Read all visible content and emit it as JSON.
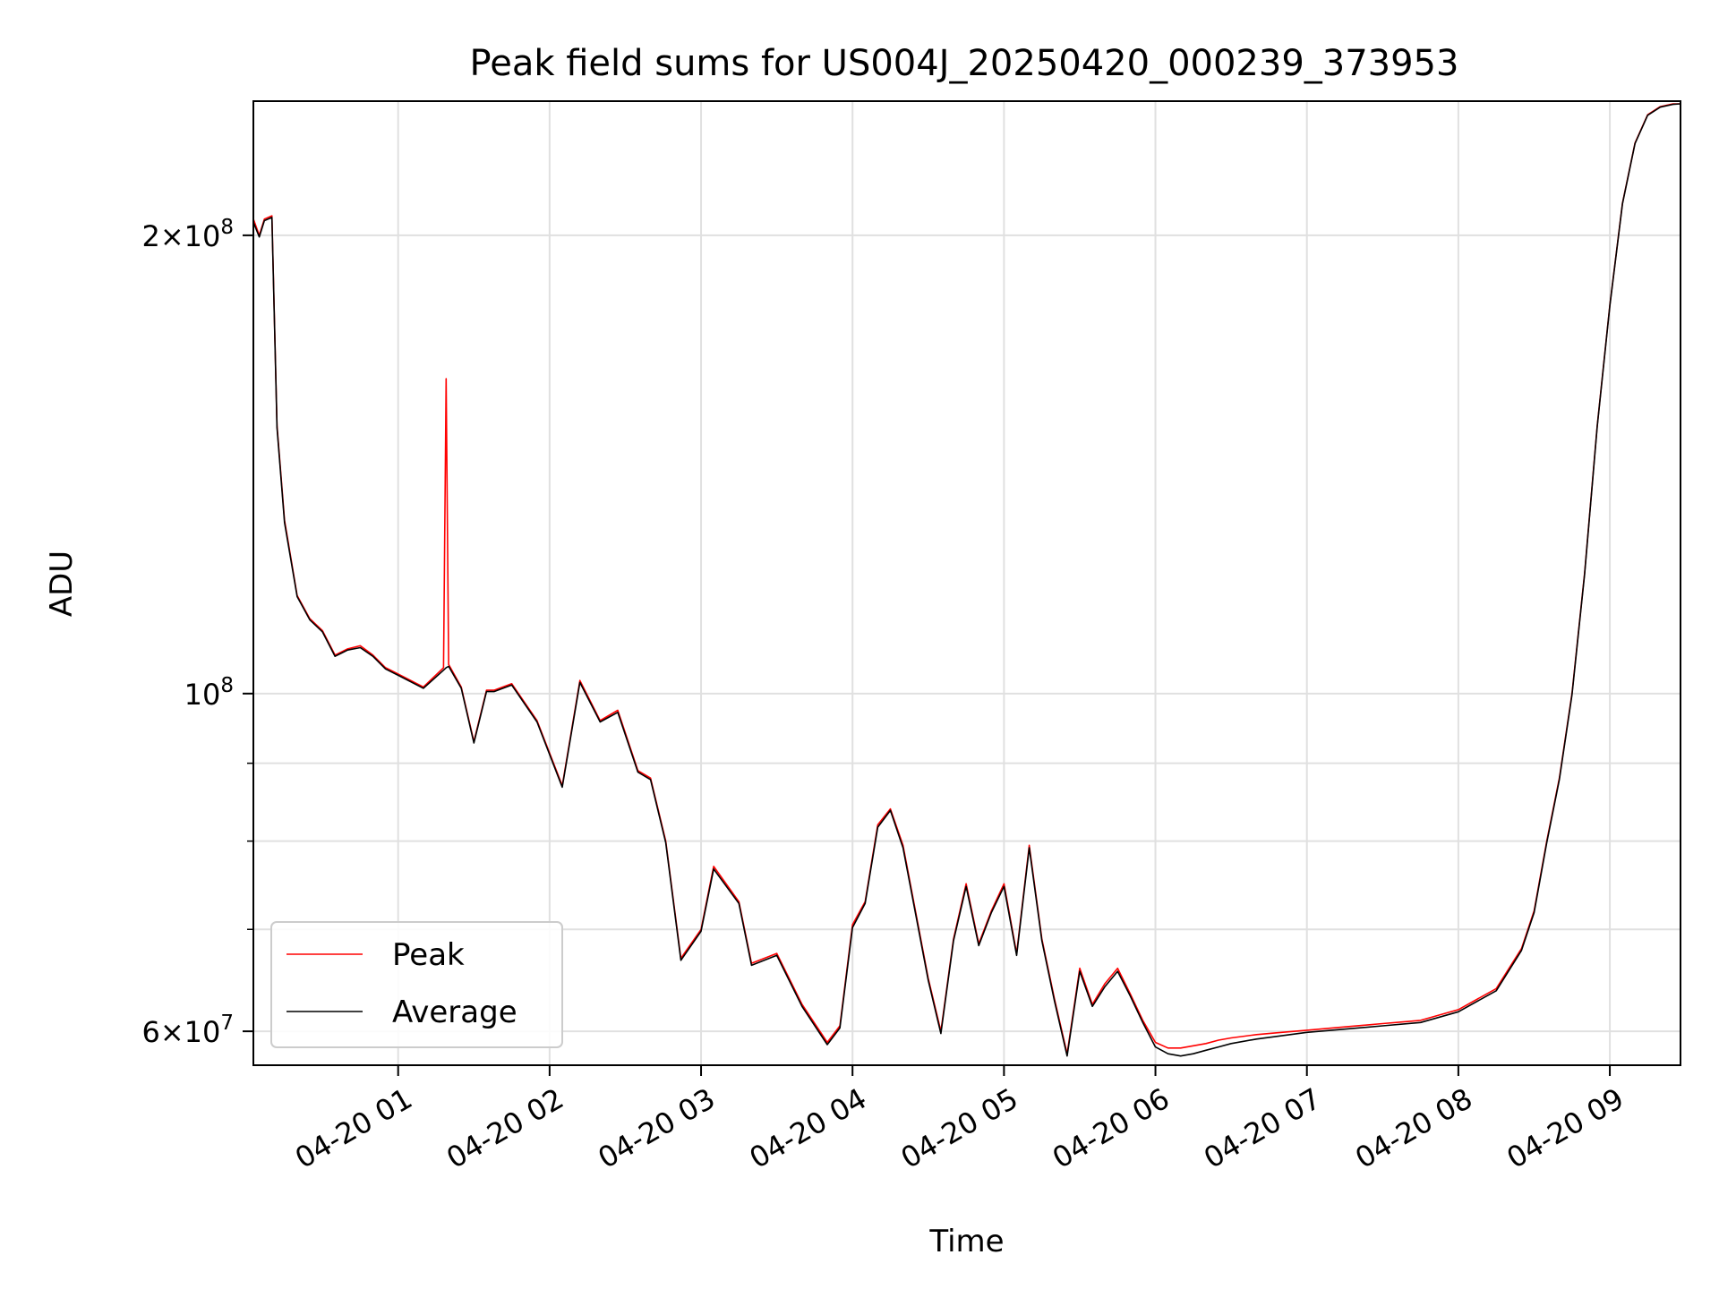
{
  "chart_data": {
    "type": "line",
    "title": "Peak field sums for US004J_20250420_000239_373953",
    "xlabel": "Time",
    "ylabel": "ADU",
    "x_is_time": true,
    "y_scale": "log",
    "xlim": [
      "2025-04-20 00:02:39",
      "2025-04-20 09:28:00"
    ],
    "ylim": [
      57000000,
      245000000
    ],
    "x_ticks": [
      {
        "value": "2025-04-20 01:00",
        "label": "04-20 01"
      },
      {
        "value": "2025-04-20 02:00",
        "label": "04-20 02"
      },
      {
        "value": "2025-04-20 03:00",
        "label": "04-20 03"
      },
      {
        "value": "2025-04-20 04:00",
        "label": "04-20 04"
      },
      {
        "value": "2025-04-20 05:00",
        "label": "04-20 05"
      },
      {
        "value": "2025-04-20 06:00",
        "label": "04-20 06"
      },
      {
        "value": "2025-04-20 07:00",
        "label": "04-20 07"
      },
      {
        "value": "2025-04-20 08:00",
        "label": "04-20 08"
      },
      {
        "value": "2025-04-20 09:00",
        "label": "04-20 09"
      }
    ],
    "y_major_ticks": [
      {
        "value": 60000000,
        "mantissa": "6",
        "base": "10",
        "exp": "7"
      },
      {
        "value": 100000000,
        "mantissa": "",
        "base": "10",
        "exp": "8"
      },
      {
        "value": 200000000,
        "mantissa": "2",
        "base": "10",
        "exp": "8"
      }
    ],
    "y_minor_ticks": [
      70000000,
      80000000,
      90000000
    ],
    "grid": true,
    "legend_position": "lower-left",
    "series": [
      {
        "name": "Peak",
        "color": "#ff0000",
        "x": [
          "2025-04-20 00:02:39",
          "2025-04-20 00:05",
          "2025-04-20 00:07",
          "2025-04-20 00:10",
          "2025-04-20 00:12",
          "2025-04-20 00:15",
          "2025-04-20 00:20",
          "2025-04-20 00:25",
          "2025-04-20 00:30",
          "2025-04-20 00:35",
          "2025-04-20 00:40",
          "2025-04-20 00:45",
          "2025-04-20 00:50",
          "2025-04-20 00:55",
          "2025-04-20 01:00",
          "2025-04-20 01:10",
          "2025-04-20 01:18",
          "2025-04-20 01:19",
          "2025-04-20 01:20",
          "2025-04-20 01:25",
          "2025-04-20 01:30",
          "2025-04-20 01:35",
          "2025-04-20 01:38",
          "2025-04-20 01:45",
          "2025-04-20 01:55",
          "2025-04-20 02:05",
          "2025-04-20 02:12",
          "2025-04-20 02:20",
          "2025-04-20 02:27",
          "2025-04-20 02:35",
          "2025-04-20 02:40",
          "2025-04-20 02:46",
          "2025-04-20 02:52",
          "2025-04-20 03:00",
          "2025-04-20 03:05",
          "2025-04-20 03:15",
          "2025-04-20 03:20",
          "2025-04-20 03:30",
          "2025-04-20 03:40",
          "2025-04-20 03:50",
          "2025-04-20 03:55",
          "2025-04-20 04:00",
          "2025-04-20 04:05",
          "2025-04-20 04:10",
          "2025-04-20 04:15",
          "2025-04-20 04:20",
          "2025-04-20 04:30",
          "2025-04-20 04:35",
          "2025-04-20 04:40",
          "2025-04-20 04:45",
          "2025-04-20 04:50",
          "2025-04-20 04:55",
          "2025-04-20 05:00",
          "2025-04-20 05:05",
          "2025-04-20 05:10",
          "2025-04-20 05:15",
          "2025-04-20 05:20",
          "2025-04-20 05:25",
          "2025-04-20 05:30",
          "2025-04-20 05:35",
          "2025-04-20 05:40",
          "2025-04-20 05:45",
          "2025-04-20 05:50",
          "2025-04-20 05:55",
          "2025-04-20 06:00",
          "2025-04-20 06:05",
          "2025-04-20 06:10",
          "2025-04-20 06:15",
          "2025-04-20 06:20",
          "2025-04-20 06:25",
          "2025-04-20 06:30",
          "2025-04-20 06:40",
          "2025-04-20 06:50",
          "2025-04-20 07:00",
          "2025-04-20 07:15",
          "2025-04-20 07:30",
          "2025-04-20 07:45",
          "2025-04-20 08:00",
          "2025-04-20 08:15",
          "2025-04-20 08:25",
          "2025-04-20 08:30",
          "2025-04-20 08:35",
          "2025-04-20 08:40",
          "2025-04-20 08:45",
          "2025-04-20 08:50",
          "2025-04-20 08:55",
          "2025-04-20 09:00",
          "2025-04-20 09:05",
          "2025-04-20 09:10",
          "2025-04-20 09:15",
          "2025-04-20 09:20",
          "2025-04-20 09:25",
          "2025-04-20 09:28"
        ],
        "y": [
          205000000,
          200000000,
          205000000,
          206000000,
          150000000,
          130000000,
          116000000,
          112000000,
          110000000,
          106000000,
          107000000,
          107500000,
          106000000,
          104000000,
          103000000,
          101000000,
          104000000,
          161000000,
          104500000,
          101000000,
          93000000,
          100500000,
          100500000,
          101500000,
          96000000,
          87000000,
          102000000,
          96000000,
          97500000,
          89000000,
          88000000,
          80000000,
          67000000,
          70000000,
          77000000,
          73000000,
          66500000,
          67500000,
          62500000,
          59000000,
          60500000,
          70500000,
          73000000,
          82000000,
          84000000,
          79500000,
          65000000,
          60000000,
          69000000,
          75000000,
          68500000,
          72000000,
          75000000,
          67500000,
          79500000,
          69000000,
          63000000,
          58000000,
          66000000,
          62500000,
          64500000,
          66000000,
          63500000,
          61000000,
          59000000,
          58500000,
          58500000,
          58700000,
          58900000,
          59200000,
          59400000,
          59700000,
          59900000,
          60100000,
          60400000,
          60700000,
          61000000,
          62000000,
          64000000,
          68000000,
          72000000,
          80000000,
          88000000,
          100000000,
          120000000,
          150000000,
          180000000,
          210000000,
          230000000,
          240000000,
          243000000,
          244000000,
          244000000
        ]
      },
      {
        "name": "Average",
        "color": "#000000",
        "x": [
          "2025-04-20 00:02:39",
          "2025-04-20 00:05",
          "2025-04-20 00:07",
          "2025-04-20 00:10",
          "2025-04-20 00:12",
          "2025-04-20 00:15",
          "2025-04-20 00:20",
          "2025-04-20 00:25",
          "2025-04-20 00:30",
          "2025-04-20 00:35",
          "2025-04-20 00:40",
          "2025-04-20 00:45",
          "2025-04-20 00:50",
          "2025-04-20 00:55",
          "2025-04-20 01:00",
          "2025-04-20 01:10",
          "2025-04-20 01:18",
          "2025-04-20 01:19",
          "2025-04-20 01:20",
          "2025-04-20 01:25",
          "2025-04-20 01:30",
          "2025-04-20 01:35",
          "2025-04-20 01:38",
          "2025-04-20 01:45",
          "2025-04-20 01:55",
          "2025-04-20 02:05",
          "2025-04-20 02:12",
          "2025-04-20 02:20",
          "2025-04-20 02:27",
          "2025-04-20 02:35",
          "2025-04-20 02:40",
          "2025-04-20 02:46",
          "2025-04-20 02:52",
          "2025-04-20 03:00",
          "2025-04-20 03:05",
          "2025-04-20 03:15",
          "2025-04-20 03:20",
          "2025-04-20 03:30",
          "2025-04-20 03:40",
          "2025-04-20 03:50",
          "2025-04-20 03:55",
          "2025-04-20 04:00",
          "2025-04-20 04:05",
          "2025-04-20 04:10",
          "2025-04-20 04:15",
          "2025-04-20 04:20",
          "2025-04-20 04:30",
          "2025-04-20 04:35",
          "2025-04-20 04:40",
          "2025-04-20 04:45",
          "2025-04-20 04:50",
          "2025-04-20 04:55",
          "2025-04-20 05:00",
          "2025-04-20 05:05",
          "2025-04-20 05:10",
          "2025-04-20 05:15",
          "2025-04-20 05:20",
          "2025-04-20 05:25",
          "2025-04-20 05:30",
          "2025-04-20 05:35",
          "2025-04-20 05:40",
          "2025-04-20 05:45",
          "2025-04-20 05:50",
          "2025-04-20 05:55",
          "2025-04-20 06:00",
          "2025-04-20 06:05",
          "2025-04-20 06:10",
          "2025-04-20 06:15",
          "2025-04-20 06:20",
          "2025-04-20 06:25",
          "2025-04-20 06:30",
          "2025-04-20 06:40",
          "2025-04-20 06:50",
          "2025-04-20 07:00",
          "2025-04-20 07:15",
          "2025-04-20 07:30",
          "2025-04-20 07:45",
          "2025-04-20 08:00",
          "2025-04-20 08:15",
          "2025-04-20 08:25",
          "2025-04-20 08:30",
          "2025-04-20 08:35",
          "2025-04-20 08:40",
          "2025-04-20 08:45",
          "2025-04-20 08:50",
          "2025-04-20 08:55",
          "2025-04-20 09:00",
          "2025-04-20 09:05",
          "2025-04-20 09:10",
          "2025-04-20 09:15",
          "2025-04-20 09:20",
          "2025-04-20 09:25",
          "2025-04-20 09:28"
        ],
        "y": [
          204000000,
          199500000,
          204500000,
          205500000,
          149500000,
          129500000,
          115800000,
          111800000,
          109800000,
          105800000,
          106800000,
          107200000,
          105800000,
          103800000,
          102800000,
          100800000,
          103600000,
          104000000,
          104200000,
          100800000,
          92800000,
          100300000,
          100300000,
          101300000,
          95800000,
          86800000,
          101700000,
          95800000,
          97200000,
          88800000,
          87800000,
          79800000,
          66800000,
          69800000,
          76700000,
          72800000,
          66300000,
          67300000,
          62300000,
          58800000,
          60300000,
          70200000,
          72800000,
          81700000,
          83800000,
          79200000,
          64800000,
          59800000,
          68800000,
          74700000,
          68300000,
          71800000,
          74700000,
          67300000,
          79200000,
          68800000,
          62800000,
          57800000,
          65700000,
          62300000,
          64200000,
          65700000,
          63300000,
          60800000,
          58600000,
          58000000,
          57800000,
          58000000,
          58300000,
          58600000,
          58900000,
          59300000,
          59600000,
          59900000,
          60200000,
          60500000,
          60800000,
          61800000,
          63800000,
          67800000,
          71800000,
          79800000,
          87800000,
          99800000,
          119800000,
          149800000,
          179800000,
          209800000,
          229800000,
          239800000,
          242800000,
          243800000,
          244000000
        ]
      }
    ],
    "legend": [
      "Peak",
      "Average"
    ]
  }
}
